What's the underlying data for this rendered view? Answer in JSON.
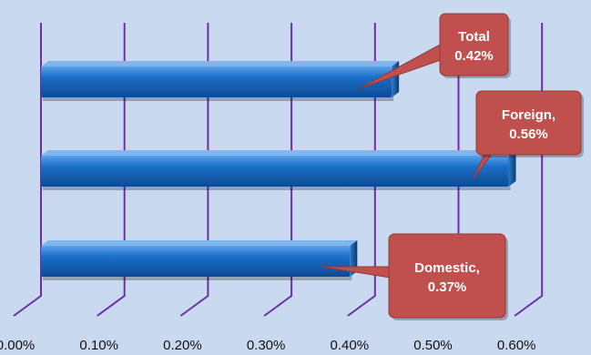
{
  "chart_data": {
    "type": "bar",
    "orientation": "horizontal",
    "style": "3d",
    "categories": [
      "Domestic",
      "Foreign",
      "Total"
    ],
    "values": [
      0.37,
      0.56,
      0.42
    ],
    "xlim": [
      0,
      0.6
    ],
    "x_ticks": [
      "0.00%",
      "0.10%",
      "0.20%",
      "0.30%",
      "0.40%",
      "0.50%",
      "0.60%"
    ],
    "grid": true,
    "legend": "none",
    "data_labels": [
      {
        "line1": "Domestic,",
        "line2": "0.37%"
      },
      {
        "line1": "Foreign,",
        "line2": "0.56%"
      },
      {
        "line1": "Total",
        "line2": "0.42%"
      }
    ],
    "colors": {
      "background": "#c9d9f0",
      "bar": "#1a6fc7",
      "bar_dark": "#0e3f7a",
      "gridline": "#6b2fa6",
      "callout": "#c0504d",
      "callout_text": "#ffffff"
    }
  }
}
